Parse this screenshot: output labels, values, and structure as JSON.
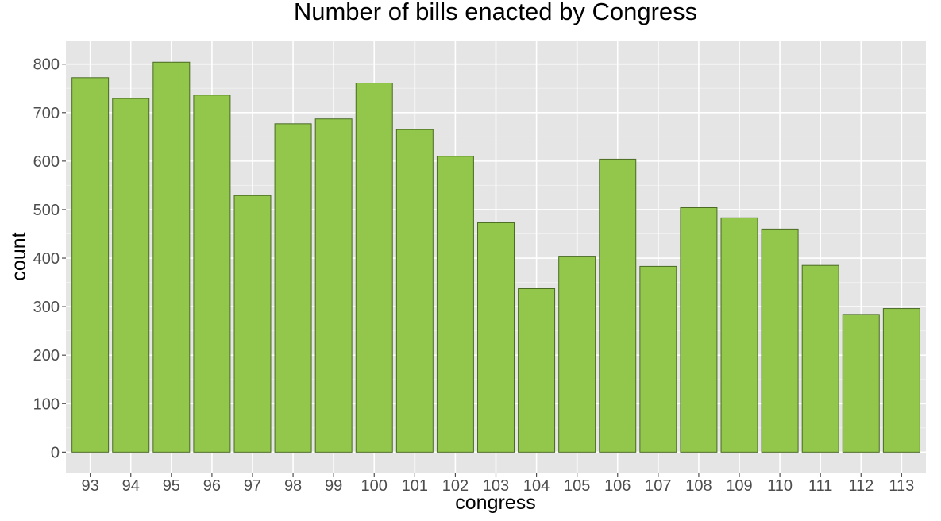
{
  "chart_data": {
    "type": "bar",
    "title": "Number of bills enacted by Congress",
    "xlabel": "congress",
    "ylabel": "count",
    "categories": [
      "93",
      "94",
      "95",
      "96",
      "97",
      "98",
      "99",
      "100",
      "101",
      "102",
      "103",
      "104",
      "105",
      "106",
      "107",
      "108",
      "109",
      "110",
      "111",
      "112",
      "113"
    ],
    "values": [
      772,
      729,
      804,
      736,
      529,
      677,
      687,
      761,
      665,
      610,
      473,
      337,
      404,
      604,
      383,
      504,
      483,
      460,
      385,
      284,
      296
    ],
    "ylim": [
      -42,
      847
    ],
    "yticks": [
      0,
      100,
      200,
      300,
      400,
      500,
      600,
      700,
      800
    ],
    "ytick_labels": [
      "0",
      "100",
      "200",
      "300",
      "400",
      "500",
      "600",
      "700",
      "800"
    ],
    "grid": true,
    "colors": {
      "bar_fill": "#92c74b",
      "bar_stroke": "#4a6a24",
      "panel_bg": "#e5e5e5",
      "grid_major": "#ffffff",
      "grid_minor": "#f0f0f0"
    }
  }
}
